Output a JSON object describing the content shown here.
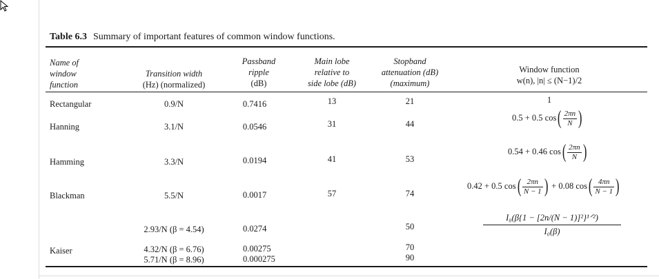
{
  "caption": {
    "number": "Table 6.3",
    "text": "Summary of important features of common window functions."
  },
  "headers": {
    "name": [
      "Name of",
      "window",
      "function"
    ],
    "transition": [
      "Transition width",
      "(Hz) (normalized)"
    ],
    "ripple": [
      "Passband",
      "ripple",
      "(dB)"
    ],
    "mainlobe": [
      "Main lobe",
      "relative to",
      "side lobe (dB)"
    ],
    "stopband": [
      "Stopband",
      "attenuation (dB)",
      "(maximum)"
    ],
    "window": [
      "Window function",
      "w(n), |n| ≤ (N−1)/2"
    ]
  },
  "rows": {
    "rectangular": {
      "name": "Rectangular",
      "transition": "0.9/N",
      "ripple": "0.7416",
      "mainlobe": "13",
      "stopband": "21",
      "window": "1"
    },
    "hanning": {
      "name": "Hanning",
      "transition": "3.1/N",
      "ripple": "0.0546",
      "mainlobe": "31",
      "stopband": "44",
      "formula": {
        "lead": "0.5 + 0.5 cos",
        "num": "2πn",
        "den": "N"
      }
    },
    "hamming": {
      "name": "Hamming",
      "transition": "3.3/N",
      "ripple": "0.0194",
      "mainlobe": "41",
      "stopband": "53",
      "formula": {
        "lead": "0.54 + 0.46 cos",
        "num": "2πn",
        "den": "N"
      }
    },
    "blackman": {
      "name": "Blackman",
      "transition": "5.5/N",
      "ripple": "0.0017",
      "mainlobe": "57",
      "stopband": "74",
      "formula": {
        "lead": "0.42 + 0.5 cos",
        "num1": "2πn",
        "den1": "N − 1",
        "mid": "+ 0.08 cos",
        "num2": "4πn",
        "den2": "N − 1"
      }
    },
    "kaiser": {
      "name": "Kaiser",
      "transitions": [
        "2.93/N (β = 4.54)",
        "4.32/N (β = 6.76)",
        "5.71/N (β = 8.96)"
      ],
      "ripples": [
        "0.0274",
        "0.00275",
        "0.000275"
      ],
      "stopbands": [
        "50",
        "70",
        "90"
      ],
      "formula": {
        "num": "I₀(β{1 − [2n/(N − 1)]²}¹ᐟ²)",
        "den": "I₀(β)"
      }
    }
  }
}
